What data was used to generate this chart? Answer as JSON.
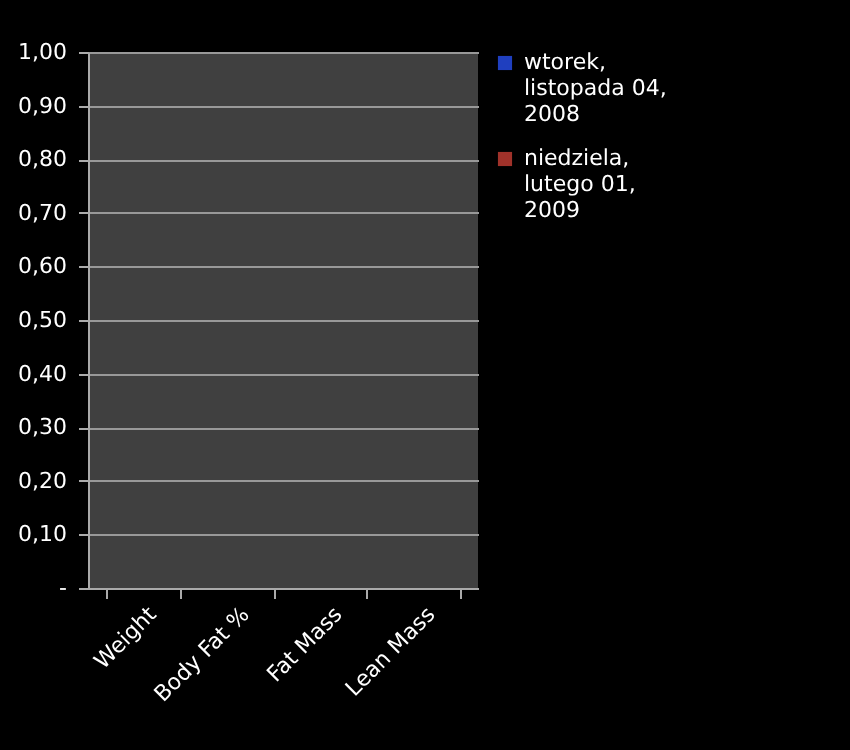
{
  "chart_data": {
    "type": "bar",
    "categories": [
      "Weight",
      "Body Fat %",
      "Fat Mass",
      "Lean Mass"
    ],
    "series": [
      {
        "name": "wtorek, listopada 04, 2008",
        "color": "#1f3fbf",
        "values": [
          null,
          null,
          null,
          null
        ]
      },
      {
        "name": "niedziela, lutego 01, 2009",
        "color": "#a0322a",
        "values": [
          null,
          null,
          null,
          null
        ]
      }
    ],
    "ylim": [
      0,
      1
    ],
    "yticks": [
      {
        "value": 0,
        "label": "-"
      },
      {
        "value": 0.1,
        "label": "0,10"
      },
      {
        "value": 0.2,
        "label": "0,20"
      },
      {
        "value": 0.3,
        "label": "0,30"
      },
      {
        "value": 0.4,
        "label": "0,40"
      },
      {
        "value": 0.5,
        "label": "0,50"
      },
      {
        "value": 0.6,
        "label": "0,60"
      },
      {
        "value": 0.7,
        "label": "0,70"
      },
      {
        "value": 0.8,
        "label": "0,80"
      },
      {
        "value": 0.9,
        "label": "0,90"
      },
      {
        "value": 1,
        "label": "1,00"
      }
    ],
    "grid": true,
    "legend": "right"
  }
}
